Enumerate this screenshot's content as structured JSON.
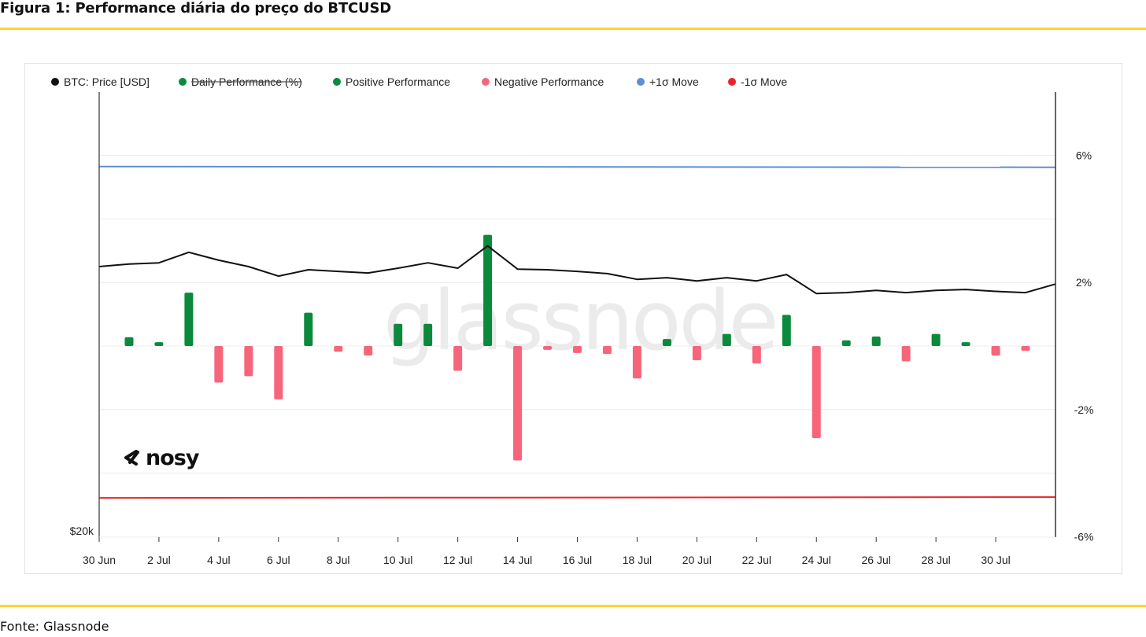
{
  "figure": {
    "title": "Figura 1: Performance diária do preço do BTCUSD",
    "source": "Fonte: Glassnode",
    "rule_color": "#fcd535"
  },
  "brand": {
    "watermark": "glassnode",
    "logo": "nosy",
    "logo_icon": "nosy-logo-icon"
  },
  "colors": {
    "price": "#111111",
    "positive": "#0b8a3b",
    "negative": "#f6657a",
    "plus_sigma": "#5b8fd6",
    "minus_sigma": "#e8252a",
    "grid": "#ececec",
    "axis": "#333333"
  },
  "chart_data": {
    "type": "bar",
    "legend": [
      {
        "label": "BTC: Price [USD]",
        "color": "#111111",
        "strikethrough": false
      },
      {
        "label": "Daily Performance (%)",
        "color": "#0b8a3b",
        "strikethrough": true
      },
      {
        "label": "Positive Performance",
        "color": "#0b8a3b",
        "strikethrough": false
      },
      {
        "label": "Negative Performance",
        "color": "#f6657a",
        "strikethrough": false
      },
      {
        "label": "+1σ Move",
        "color": "#5b8fd6",
        "strikethrough": false
      },
      {
        "label": "-1σ Move",
        "color": "#e8252a",
        "strikethrough": false
      }
    ],
    "legend_position": "top-left",
    "x_labels": [
      "30 Jun",
      "2 Jul",
      "4 Jul",
      "6 Jul",
      "8 Jul",
      "10 Jul",
      "12 Jul",
      "14 Jul",
      "16 Jul",
      "18 Jul",
      "20 Jul",
      "22 Jul",
      "24 Jul",
      "26 Jul",
      "28 Jul",
      "30 Jul"
    ],
    "x_label_days": [
      0,
      2,
      4,
      6,
      8,
      10,
      12,
      14,
      16,
      18,
      20,
      22,
      24,
      26,
      28,
      30
    ],
    "x_range_days": [
      0,
      32
    ],
    "left_axis": {
      "label": "$20k",
      "value": 20000
    },
    "right_axis": {
      "ticks": [
        "6%",
        "2%",
        "-2%",
        "-6%"
      ],
      "tick_values": [
        6,
        2,
        -2,
        -6
      ],
      "range": [
        -6,
        8
      ]
    },
    "grid": true,
    "daily_performance": [
      {
        "day": 1,
        "value": 0.28
      },
      {
        "day": 2,
        "value": 0.12
      },
      {
        "day": 3,
        "value": 1.68
      },
      {
        "day": 4,
        "value": -1.15
      },
      {
        "day": 5,
        "value": -0.95
      },
      {
        "day": 6,
        "value": -1.68
      },
      {
        "day": 7,
        "value": 1.05
      },
      {
        "day": 8,
        "value": -0.18
      },
      {
        "day": 9,
        "value": -0.3
      },
      {
        "day": 10,
        "value": 0.7
      },
      {
        "day": 11,
        "value": 0.7
      },
      {
        "day": 12,
        "value": -0.78
      },
      {
        "day": 13,
        "value": 3.5
      },
      {
        "day": 14,
        "value": -3.6
      },
      {
        "day": 15,
        "value": -0.12
      },
      {
        "day": 16,
        "value": -0.22
      },
      {
        "day": 17,
        "value": -0.25
      },
      {
        "day": 18,
        "value": -1.02
      },
      {
        "day": 19,
        "value": 0.22
      },
      {
        "day": 20,
        "value": -0.45
      },
      {
        "day": 21,
        "value": 0.38
      },
      {
        "day": 22,
        "value": -0.55
      },
      {
        "day": 23,
        "value": 0.98
      },
      {
        "day": 24,
        "value": -2.9
      },
      {
        "day": 25,
        "value": 0.18
      },
      {
        "day": 26,
        "value": 0.3
      },
      {
        "day": 27,
        "value": -0.48
      },
      {
        "day": 28,
        "value": 0.38
      },
      {
        "day": 29,
        "value": 0.12
      },
      {
        "day": 30,
        "value": -0.3
      },
      {
        "day": 31,
        "value": -0.15
      }
    ],
    "plus_sigma_pct": 5.65,
    "minus_sigma_pct": -4.78,
    "price_series_overlay_pct": [
      {
        "day": 0,
        "value": 2.5
      },
      {
        "day": 1,
        "value": 2.58
      },
      {
        "day": 2,
        "value": 2.62
      },
      {
        "day": 3,
        "value": 2.95
      },
      {
        "day": 4,
        "value": 2.7
      },
      {
        "day": 5,
        "value": 2.5
      },
      {
        "day": 6,
        "value": 2.2
      },
      {
        "day": 7,
        "value": 2.4
      },
      {
        "day": 8,
        "value": 2.35
      },
      {
        "day": 9,
        "value": 2.3
      },
      {
        "day": 10,
        "value": 2.45
      },
      {
        "day": 11,
        "value": 2.62
      },
      {
        "day": 12,
        "value": 2.45
      },
      {
        "day": 13,
        "value": 3.15
      },
      {
        "day": 14,
        "value": 2.42
      },
      {
        "day": 15,
        "value": 2.4
      },
      {
        "day": 16,
        "value": 2.35
      },
      {
        "day": 17,
        "value": 2.28
      },
      {
        "day": 18,
        "value": 2.1
      },
      {
        "day": 19,
        "value": 2.15
      },
      {
        "day": 20,
        "value": 2.05
      },
      {
        "day": 21,
        "value": 2.15
      },
      {
        "day": 22,
        "value": 2.05
      },
      {
        "day": 23,
        "value": 2.25
      },
      {
        "day": 24,
        "value": 1.65
      },
      {
        "day": 25,
        "value": 1.68
      },
      {
        "day": 26,
        "value": 1.75
      },
      {
        "day": 27,
        "value": 1.68
      },
      {
        "day": 28,
        "value": 1.75
      },
      {
        "day": 29,
        "value": 1.78
      },
      {
        "day": 30,
        "value": 1.72
      },
      {
        "day": 31,
        "value": 1.68
      },
      {
        "day": 32,
        "value": 1.95
      }
    ]
  }
}
